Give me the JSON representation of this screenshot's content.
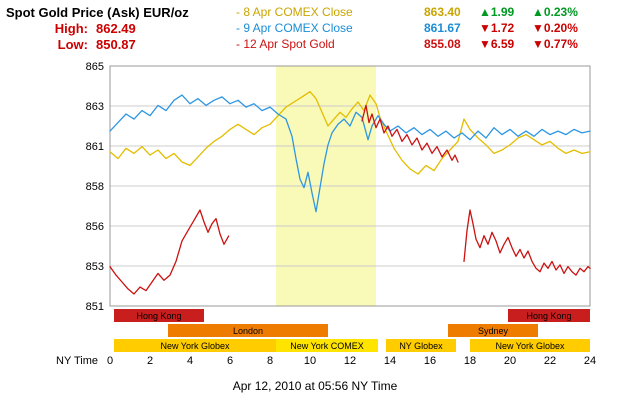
{
  "header": {
    "title": "Spot Gold Price (Ask) EUR/oz",
    "high_label": "High:",
    "high_value": "862.49",
    "low_label": "Low:",
    "low_value": "850.87",
    "legend": [
      {
        "label": "- 8 Apr COMEX Close",
        "value": "863.40",
        "change": "▲1.99",
        "change_pct": "▲0.23%",
        "color": "#c9a500",
        "trend_color": "#009922"
      },
      {
        "label": "- 9 Apr COMEX Close",
        "value": "861.67",
        "change": "▼1.72",
        "change_pct": "▼0.20%",
        "color": "#1b8ed6",
        "trend_color": "#cc0000"
      },
      {
        "label": "- 12 Apr Spot Gold",
        "value": "855.08",
        "change": "▼6.59",
        "change_pct": "▼0.77%",
        "color": "#cc1111",
        "trend_color": "#cc0000"
      }
    ]
  },
  "footer": {
    "caption": "Apr 12, 2010 at 05:56 NY Time"
  },
  "chart_data": {
    "type": "line",
    "title": "Spot Gold Price (Ask) EUR/oz",
    "xlabel": "NY Time",
    "ylabel": "EUR/oz",
    "x_axis": {
      "label": "NY Time",
      "min": 0,
      "max": 24,
      "ticks": [
        0,
        2,
        4,
        6,
        8,
        10,
        12,
        14,
        16,
        18,
        20,
        22,
        24
      ]
    },
    "y_axis": {
      "min": 851,
      "max": 865,
      "tick_labels": [
        "865",
        "863",
        "861",
        "858",
        "856",
        "853",
        "851"
      ]
    },
    "grid": true,
    "legend_position": "top",
    "highlight_band": {
      "from": 8.3,
      "to": 13.3,
      "color": "#f9f9b8",
      "label": "New York COMEX session"
    },
    "series": [
      {
        "name": "8 Apr COMEX Close",
        "slug": "8-apr-comex-close",
        "color": "#e3bd00",
        "close": 863.4,
        "segments": [
          [
            [
              0,
              860.0
            ],
            [
              0.4,
              859.6
            ],
            [
              0.8,
              860.2
            ],
            [
              1.2,
              859.9
            ],
            [
              1.6,
              860.3
            ],
            [
              2.0,
              859.8
            ],
            [
              2.4,
              860.1
            ],
            [
              2.8,
              859.6
            ],
            [
              3.2,
              859.9
            ],
            [
              3.6,
              859.4
            ],
            [
              4.0,
              859.2
            ],
            [
              4.4,
              859.7
            ],
            [
              4.8,
              860.2
            ],
            [
              5.2,
              860.6
            ],
            [
              5.6,
              860.9
            ],
            [
              6.0,
              861.3
            ],
            [
              6.4,
              861.6
            ],
            [
              6.8,
              861.3
            ],
            [
              7.2,
              861.0
            ],
            [
              7.6,
              861.4
            ],
            [
              8.0,
              861.6
            ],
            [
              8.4,
              862.1
            ],
            [
              8.8,
              862.6
            ],
            [
              9.2,
              862.9
            ],
            [
              9.6,
              863.2
            ],
            [
              10.0,
              863.5
            ],
            [
              10.3,
              863.1
            ],
            [
              10.6,
              862.3
            ],
            [
              10.9,
              861.5
            ],
            [
              11.2,
              861.9
            ],
            [
              11.5,
              862.3
            ],
            [
              11.8,
              862.0
            ],
            [
              12.1,
              862.5
            ],
            [
              12.4,
              862.9
            ],
            [
              12.7,
              862.4
            ],
            [
              13.0,
              863.3
            ],
            [
              13.3,
              862.8
            ],
            [
              13.5,
              862.0
            ],
            [
              13.8,
              861.2
            ],
            [
              14.2,
              860.2
            ],
            [
              14.6,
              859.5
            ],
            [
              15.0,
              859.0
            ],
            [
              15.4,
              858.7
            ],
            [
              15.8,
              859.2
            ],
            [
              16.2,
              858.9
            ],
            [
              16.6,
              859.6
            ],
            [
              17.0,
              860.1
            ],
            [
              17.4,
              860.6
            ],
            [
              17.7,
              861.9
            ],
            [
              18.0,
              861.3
            ],
            [
              18.4,
              860.8
            ],
            [
              18.8,
              860.4
            ],
            [
              19.2,
              859.9
            ],
            [
              19.6,
              860.1
            ],
            [
              20.0,
              860.4
            ],
            [
              20.4,
              860.8
            ],
            [
              20.8,
              861.0
            ],
            [
              21.2,
              860.7
            ],
            [
              21.6,
              860.4
            ],
            [
              22.0,
              860.6
            ],
            [
              22.4,
              860.2
            ],
            [
              22.8,
              859.9
            ],
            [
              23.2,
              860.1
            ],
            [
              23.6,
              859.9
            ],
            [
              24,
              860.0
            ]
          ]
        ]
      },
      {
        "name": "9 Apr COMEX Close",
        "slug": "9-apr-comex-close",
        "color": "#2e97e2",
        "close": 861.67,
        "segments": [
          [
            [
              0,
              861.2
            ],
            [
              0.4,
              861.7
            ],
            [
              0.8,
              862.2
            ],
            [
              1.2,
              861.9
            ],
            [
              1.6,
              862.4
            ],
            [
              2.0,
              862.1
            ],
            [
              2.4,
              862.7
            ],
            [
              2.8,
              862.4
            ],
            [
              3.2,
              863.0
            ],
            [
              3.6,
              863.3
            ],
            [
              4.0,
              862.8
            ],
            [
              4.4,
              863.1
            ],
            [
              4.8,
              862.7
            ],
            [
              5.2,
              863.0
            ],
            [
              5.6,
              863.2
            ],
            [
              6.0,
              862.8
            ],
            [
              6.4,
              863.0
            ],
            [
              6.8,
              862.6
            ],
            [
              7.2,
              862.8
            ],
            [
              7.6,
              862.4
            ],
            [
              8.0,
              862.6
            ],
            [
              8.4,
              862.2
            ],
            [
              8.8,
              861.9
            ],
            [
              9.1,
              860.9
            ],
            [
              9.3,
              859.6
            ],
            [
              9.5,
              858.4
            ],
            [
              9.7,
              857.9
            ],
            [
              9.9,
              858.8
            ],
            [
              10.1,
              857.6
            ],
            [
              10.3,
              856.5
            ],
            [
              10.5,
              857.9
            ],
            [
              10.7,
              859.3
            ],
            [
              10.9,
              860.4
            ],
            [
              11.1,
              861.1
            ],
            [
              11.4,
              861.6
            ],
            [
              11.7,
              861.9
            ],
            [
              12.0,
              861.5
            ],
            [
              12.3,
              862.3
            ],
            [
              12.6,
              862.0
            ],
            [
              12.9,
              860.7
            ],
            [
              13.1,
              861.5
            ],
            [
              13.4,
              862.1
            ],
            [
              13.7,
              861.6
            ],
            [
              14.0,
              861.2
            ],
            [
              14.4,
              861.5
            ],
            [
              14.8,
              861.1
            ],
            [
              15.2,
              861.4
            ],
            [
              15.6,
              861.0
            ],
            [
              16.0,
              861.3
            ],
            [
              16.4,
              860.9
            ],
            [
              16.8,
              861.2
            ],
            [
              17.2,
              860.8
            ],
            [
              17.6,
              861.1
            ],
            [
              18.0,
              860.7
            ],
            [
              18.4,
              861.2
            ],
            [
              18.8,
              860.8
            ],
            [
              19.2,
              861.4
            ],
            [
              19.6,
              861.0
            ],
            [
              20.0,
              861.3
            ],
            [
              20.4,
              860.9
            ],
            [
              20.8,
              861.2
            ],
            [
              21.2,
              860.9
            ],
            [
              21.6,
              861.3
            ],
            [
              22.0,
              861.0
            ],
            [
              22.4,
              861.2
            ],
            [
              22.8,
              861.0
            ],
            [
              23.2,
              861.3
            ],
            [
              23.6,
              861.1
            ],
            [
              24,
              861.2
            ]
          ]
        ]
      },
      {
        "name": "12 Apr Spot Gold",
        "slug": "12-apr-spot-gold",
        "color": "#cc1111",
        "close": 855.08,
        "segments": [
          [
            [
              0,
              853.3
            ],
            [
              0.3,
              852.8
            ],
            [
              0.6,
              852.4
            ],
            [
              0.9,
              852.0
            ],
            [
              1.2,
              851.7
            ],
            [
              1.5,
              852.1
            ],
            [
              1.8,
              851.9
            ],
            [
              2.1,
              852.4
            ],
            [
              2.4,
              852.9
            ],
            [
              2.7,
              852.5
            ],
            [
              3.0,
              852.8
            ],
            [
              3.3,
              853.6
            ],
            [
              3.6,
              854.8
            ],
            [
              3.9,
              855.4
            ],
            [
              4.2,
              856.0
            ],
            [
              4.5,
              856.6
            ],
            [
              4.7,
              855.9
            ],
            [
              4.9,
              855.3
            ],
            [
              5.1,
              855.8
            ],
            [
              5.3,
              856.1
            ],
            [
              5.5,
              855.2
            ],
            [
              5.7,
              854.6
            ],
            [
              5.93,
              855.08
            ]
          ],
          [
            [
              12.6,
              861.8
            ],
            [
              12.8,
              862.7
            ],
            [
              12.95,
              861.7
            ],
            [
              13.1,
              862.2
            ],
            [
              13.3,
              861.4
            ],
            [
              13.5,
              861.9
            ],
            [
              13.7,
              861.1
            ],
            [
              13.9,
              861.5
            ],
            [
              14.1,
              860.9
            ],
            [
              14.35,
              861.3
            ],
            [
              14.6,
              860.6
            ],
            [
              14.85,
              861.0
            ],
            [
              15.1,
              860.4
            ],
            [
              15.35,
              860.8
            ],
            [
              15.6,
              860.1
            ],
            [
              15.85,
              860.5
            ],
            [
              16.1,
              859.9
            ],
            [
              16.35,
              860.3
            ],
            [
              16.6,
              859.7
            ],
            [
              16.85,
              860.1
            ],
            [
              17.1,
              859.5
            ],
            [
              17.25,
              859.8
            ],
            [
              17.4,
              859.4
            ]
          ],
          [
            [
              17.7,
              853.6
            ],
            [
              17.85,
              855.4
            ],
            [
              18.0,
              856.6
            ],
            [
              18.15,
              855.8
            ],
            [
              18.3,
              854.9
            ],
            [
              18.5,
              854.4
            ],
            [
              18.7,
              855.1
            ],
            [
              18.9,
              854.6
            ],
            [
              19.1,
              855.3
            ],
            [
              19.3,
              854.8
            ],
            [
              19.5,
              854.1
            ],
            [
              19.7,
              854.6
            ],
            [
              19.9,
              855.0
            ],
            [
              20.1,
              854.4
            ],
            [
              20.3,
              853.9
            ],
            [
              20.5,
              854.3
            ],
            [
              20.7,
              853.8
            ],
            [
              20.9,
              854.2
            ],
            [
              21.1,
              853.6
            ],
            [
              21.3,
              853.2
            ],
            [
              21.5,
              853.0
            ],
            [
              21.7,
              853.5
            ],
            [
              21.9,
              853.2
            ],
            [
              22.1,
              853.6
            ],
            [
              22.3,
              853.1
            ],
            [
              22.5,
              853.4
            ],
            [
              22.7,
              852.9
            ],
            [
              22.9,
              853.3
            ],
            [
              23.1,
              853.0
            ],
            [
              23.3,
              852.8
            ],
            [
              23.5,
              853.2
            ],
            [
              23.7,
              853.0
            ],
            [
              23.9,
              853.3
            ],
            [
              24,
              853.2
            ]
          ]
        ]
      }
    ],
    "sessions": [
      {
        "row": 0,
        "color": "#c81e1e",
        "bars": [
          {
            "from": 0.2,
            "to": 4.7,
            "label": "Hong Kong"
          },
          {
            "from": 19.9,
            "to": 24,
            "label": "Hong Kong"
          }
        ]
      },
      {
        "row": 1,
        "color": "#ee7c00",
        "bars": [
          {
            "from": 2.9,
            "to": 10.9,
            "label": "London"
          },
          {
            "from": 16.9,
            "to": 21.4,
            "label": "Sydney"
          }
        ]
      },
      {
        "row": 2,
        "color": "#ffcc00",
        "bars": [
          {
            "from": 0.2,
            "to": 8.3,
            "label": "New York Globex"
          },
          {
            "from": 8.3,
            "to": 13.4,
            "label": "New York COMEX",
            "color": "#ffe400"
          },
          {
            "from": 13.8,
            "to": 17.3,
            "label": "NY Globex"
          },
          {
            "from": 18.0,
            "to": 24,
            "label": "New York Globex"
          }
        ]
      }
    ],
    "caption": "Apr 12, 2010 at 05:56 NY Time"
  }
}
